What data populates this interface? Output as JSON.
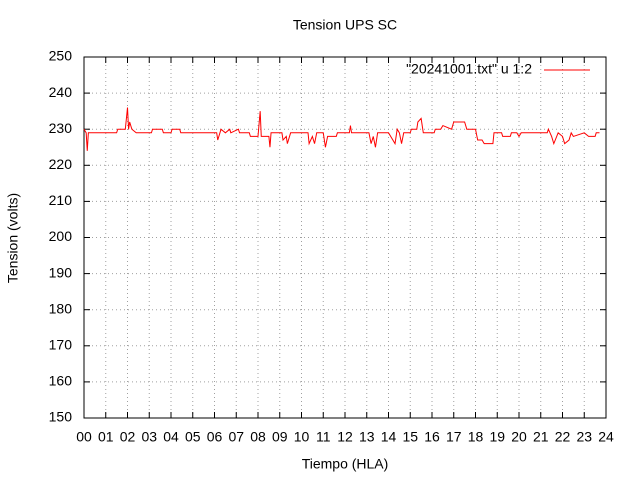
{
  "chart_data": {
    "type": "line",
    "title": "Tension UPS SC",
    "xlabel": "Tiempo (HLA)",
    "ylabel": "Tension (volts)",
    "x": [
      0,
      0.1,
      0.15,
      0.2,
      1.5,
      1.55,
      1.9,
      2.0,
      2.05,
      2.1,
      2.2,
      2.4,
      3.1,
      3.15,
      3.6,
      3.65,
      4.0,
      4.05,
      4.4,
      4.45,
      6.1,
      6.15,
      6.25,
      6.3,
      6.5,
      6.7,
      6.75,
      7.1,
      7.15,
      7.6,
      7.65,
      8.0,
      8.1,
      8.15,
      8.5,
      8.55,
      8.6,
      9.1,
      9.15,
      9.3,
      9.35,
      9.5,
      10.3,
      10.35,
      10.5,
      10.6,
      10.7,
      11.0,
      11.1,
      11.2,
      11.6,
      11.65,
      12.2,
      12.25,
      12.3,
      13.1,
      13.2,
      13.3,
      13.4,
      13.5,
      14.0,
      14.1,
      14.3,
      14.4,
      14.5,
      14.6,
      14.7,
      15.0,
      15.05,
      15.3,
      15.35,
      15.5,
      15.6,
      16.1,
      16.15,
      16.4,
      16.5,
      16.9,
      17.0,
      17.5,
      17.6,
      18.0,
      18.1,
      18.3,
      18.4,
      18.8,
      18.85,
      19.2,
      19.25,
      19.6,
      19.65,
      19.9,
      20.0,
      20.1,
      21.3,
      21.35,
      21.5,
      21.6,
      21.8,
      22.0,
      22.1,
      22.3,
      22.4,
      22.5,
      23.0,
      23.2,
      23.5,
      23.55,
      23.7
    ],
    "series": [
      {
        "name": "\"20241001.txt\" u 1:2",
        "color": "#ff0000",
        "values": [
          230,
          229,
          224,
          229,
          229,
          230,
          230,
          236,
          230,
          232,
          230,
          229,
          229,
          230,
          230,
          229,
          229,
          230,
          230,
          229,
          229,
          227,
          229,
          230,
          229,
          230,
          229,
          230,
          229,
          229,
          228,
          228,
          235,
          228,
          228,
          225,
          229,
          229,
          227,
          228,
          226,
          229,
          229,
          226,
          228,
          226,
          229,
          229,
          225,
          228,
          228,
          229,
          229,
          231,
          229,
          229,
          226,
          228,
          225,
          229,
          229,
          228,
          226,
          230,
          229,
          226,
          229,
          229,
          230,
          230,
          232,
          233,
          229,
          229,
          230,
          230,
          231,
          230,
          232,
          232,
          230,
          230,
          227,
          227,
          226,
          226,
          229,
          229,
          228,
          228,
          229,
          229,
          228,
          229,
          229,
          230,
          228,
          226,
          229,
          228,
          226,
          227,
          229,
          228,
          229,
          228,
          228,
          229,
          229
        ]
      }
    ],
    "xlim": [
      0,
      24
    ],
    "ylim": [
      150,
      250
    ],
    "xticks": [
      {
        "value": 0,
        "label": "00"
      },
      {
        "value": 1,
        "label": "01"
      },
      {
        "value": 2,
        "label": "02"
      },
      {
        "value": 3,
        "label": "03"
      },
      {
        "value": 4,
        "label": "04"
      },
      {
        "value": 5,
        "label": "05"
      },
      {
        "value": 6,
        "label": "06"
      },
      {
        "value": 7,
        "label": "07"
      },
      {
        "value": 8,
        "label": "08"
      },
      {
        "value": 9,
        "label": "09"
      },
      {
        "value": 10,
        "label": "10"
      },
      {
        "value": 11,
        "label": "11"
      },
      {
        "value": 12,
        "label": "12"
      },
      {
        "value": 13,
        "label": "13"
      },
      {
        "value": 14,
        "label": "14"
      },
      {
        "value": 15,
        "label": "15"
      },
      {
        "value": 16,
        "label": "16"
      },
      {
        "value": 17,
        "label": "17"
      },
      {
        "value": 18,
        "label": "18"
      },
      {
        "value": 19,
        "label": "19"
      },
      {
        "value": 20,
        "label": "20"
      },
      {
        "value": 21,
        "label": "21"
      },
      {
        "value": 22,
        "label": "22"
      },
      {
        "value": 23,
        "label": "23"
      },
      {
        "value": 24,
        "label": "24"
      }
    ],
    "yticks": [
      150,
      160,
      170,
      180,
      190,
      200,
      210,
      220,
      230,
      240,
      250
    ],
    "grid": true,
    "legend": "top-right"
  }
}
